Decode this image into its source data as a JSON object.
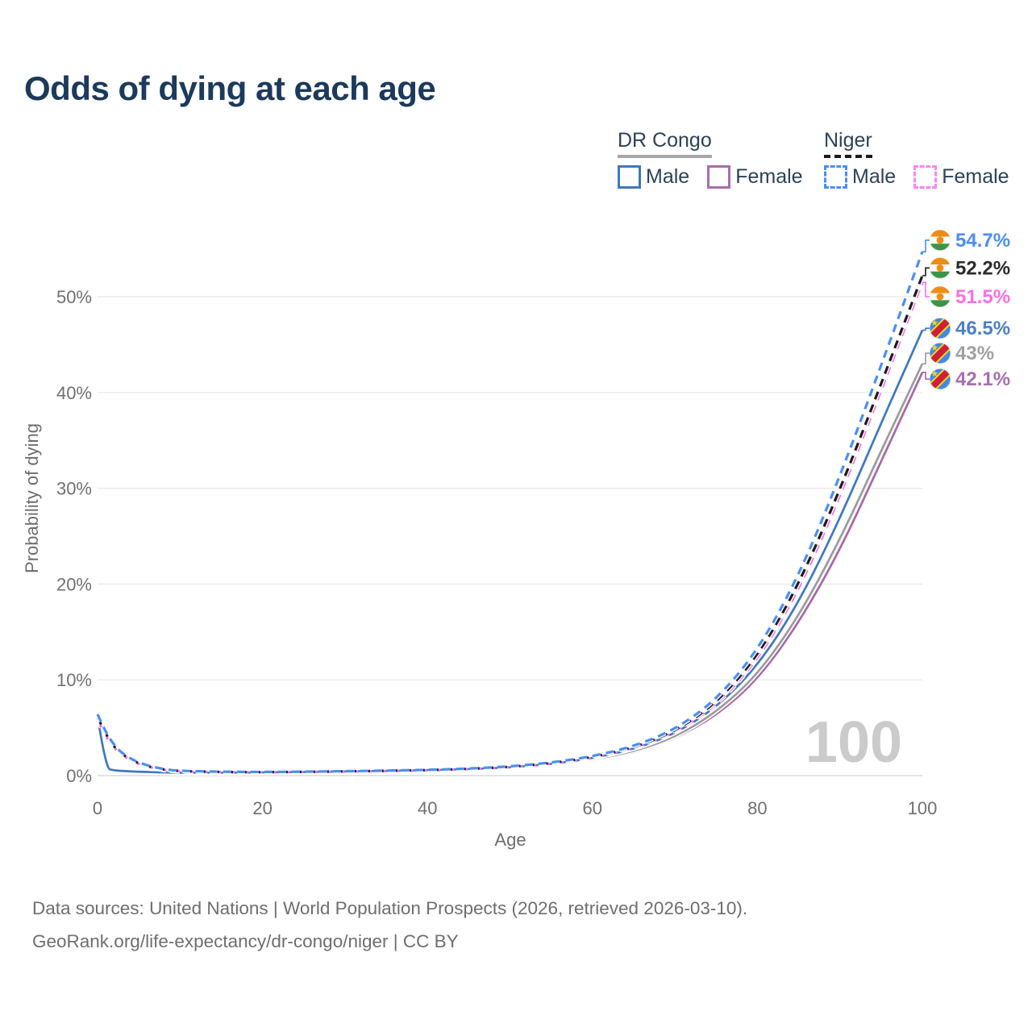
{
  "title": "Odds of dying at each age",
  "legend": {
    "groups": [
      {
        "name": "DR Congo",
        "underline_style": "solid",
        "underline_color": "#a6a6a6",
        "items": [
          {
            "label": "Male",
            "color": "#3E78C0",
            "dashed": false
          },
          {
            "label": "Female",
            "color": "#AC6BAE",
            "dashed": false
          }
        ]
      },
      {
        "name": "Niger",
        "underline_style": "dashed",
        "underline_color": "#1a1a1a",
        "items": [
          {
            "label": "Male",
            "color": "#4A8EF5",
            "dashed": true
          },
          {
            "label": "Female",
            "color": "#FC86EF",
            "dashed": true
          }
        ]
      }
    ]
  },
  "chart_data": {
    "type": "line",
    "title": "Odds of dying at each age",
    "xlabel": "Age",
    "ylabel": "Probability of dying",
    "x_ticks": [
      0,
      20,
      40,
      60,
      80,
      100
    ],
    "y_ticks": [
      0,
      10,
      20,
      30,
      40,
      50
    ],
    "y_tick_suffix": "%",
    "xlim": [
      0,
      100
    ],
    "ylim_pct": [
      0,
      56
    ],
    "grid": "horizontal",
    "watermark": "100",
    "watermark_color": "#CBCBCB",
    "series": [
      {
        "id": "drc-female",
        "name": "DR Congo Female",
        "country": "DR Congo",
        "sex": "Female",
        "color": "#A767AB",
        "label_color": "#A76FB0",
        "dashed": false,
        "flag": "drc",
        "end_label": "42.1%",
        "end_value_pct": 42.1,
        "label_row_pct": 41.4,
        "points": [
          [
            0,
            5.6
          ],
          [
            1,
            0.68
          ],
          [
            2,
            0.5
          ],
          [
            3,
            0.43
          ],
          [
            5,
            0.36
          ],
          [
            8,
            0.29
          ],
          [
            10,
            0.26
          ],
          [
            15,
            0.26
          ],
          [
            20,
            0.29
          ],
          [
            25,
            0.33
          ],
          [
            30,
            0.38
          ],
          [
            35,
            0.44
          ],
          [
            40,
            0.51
          ],
          [
            45,
            0.6
          ],
          [
            50,
            0.75
          ],
          [
            55,
            1.03
          ],
          [
            60,
            1.55
          ],
          [
            65,
            2.35
          ],
          [
            70,
            3.85
          ],
          [
            75,
            6.25
          ],
          [
            80,
            10.0
          ],
          [
            85,
            15.9
          ],
          [
            90,
            23.5
          ],
          [
            95,
            32.8
          ],
          [
            100,
            42.1
          ]
        ]
      },
      {
        "id": "drc-all",
        "name": "DR Congo",
        "country": "DR Congo",
        "sex": "Both",
        "color": "#9B9B9B",
        "label_color": "#A0A0A0",
        "dashed": false,
        "flag": "drc",
        "end_label": "43%",
        "end_value_pct": 43.0,
        "label_row_pct": 44.1,
        "points": [
          [
            0,
            5.9
          ],
          [
            1,
            0.72
          ],
          [
            2,
            0.52
          ],
          [
            3,
            0.45
          ],
          [
            5,
            0.38
          ],
          [
            8,
            0.31
          ],
          [
            10,
            0.28
          ],
          [
            15,
            0.28
          ],
          [
            20,
            0.31
          ],
          [
            25,
            0.36
          ],
          [
            30,
            0.41
          ],
          [
            35,
            0.47
          ],
          [
            40,
            0.54
          ],
          [
            45,
            0.64
          ],
          [
            50,
            0.8
          ],
          [
            55,
            1.1
          ],
          [
            60,
            1.65
          ],
          [
            65,
            2.5
          ],
          [
            70,
            4.0
          ],
          [
            75,
            6.6
          ],
          [
            80,
            10.5
          ],
          [
            85,
            16.6
          ],
          [
            90,
            24.6
          ],
          [
            95,
            33.9
          ],
          [
            100,
            43.0
          ]
        ]
      },
      {
        "id": "drc-male",
        "name": "DR Congo Male",
        "country": "DR Congo",
        "sex": "Male",
        "color": "#3E78C0",
        "label_color": "#4C80C4",
        "dashed": false,
        "flag": "drc",
        "end_label": "46.5%",
        "end_value_pct": 46.5,
        "label_row_pct": 46.7,
        "points": [
          [
            0,
            6.2
          ],
          [
            1,
            0.75
          ],
          [
            2,
            0.55
          ],
          [
            3,
            0.48
          ],
          [
            5,
            0.4
          ],
          [
            8,
            0.33
          ],
          [
            10,
            0.3
          ],
          [
            15,
            0.3
          ],
          [
            20,
            0.33
          ],
          [
            25,
            0.38
          ],
          [
            30,
            0.44
          ],
          [
            35,
            0.5
          ],
          [
            40,
            0.57
          ],
          [
            45,
            0.68
          ],
          [
            50,
            0.85
          ],
          [
            55,
            1.2
          ],
          [
            60,
            1.8
          ],
          [
            65,
            2.75
          ],
          [
            70,
            4.35
          ],
          [
            75,
            7.1
          ],
          [
            80,
            11.4
          ],
          [
            85,
            18.0
          ],
          [
            90,
            26.8
          ],
          [
            95,
            36.8
          ],
          [
            100,
            46.5
          ]
        ]
      },
      {
        "id": "niger-female",
        "name": "Niger Female",
        "country": "Niger",
        "sex": "Female",
        "color": "#FA6FE6",
        "label_color": "#FA6FE6",
        "dashed": true,
        "flag": "niger",
        "end_label": "51.5%",
        "end_value_pct": 51.5,
        "label_row_pct": 50.0,
        "points": [
          [
            0,
            5.8
          ],
          [
            1,
            4.1
          ],
          [
            2,
            2.9
          ],
          [
            3,
            2.1
          ],
          [
            5,
            1.15
          ],
          [
            8,
            0.57
          ],
          [
            10,
            0.44
          ],
          [
            15,
            0.35
          ],
          [
            20,
            0.34
          ],
          [
            25,
            0.37
          ],
          [
            30,
            0.42
          ],
          [
            35,
            0.47
          ],
          [
            40,
            0.54
          ],
          [
            45,
            0.66
          ],
          [
            50,
            0.86
          ],
          [
            55,
            1.22
          ],
          [
            60,
            1.8
          ],
          [
            65,
            2.8
          ],
          [
            70,
            4.45
          ],
          [
            75,
            7.3
          ],
          [
            80,
            12.0
          ],
          [
            85,
            19.3
          ],
          [
            90,
            29.1
          ],
          [
            95,
            40.2
          ],
          [
            100,
            51.5
          ]
        ]
      },
      {
        "id": "niger-all",
        "name": "Niger",
        "country": "Niger",
        "sex": "Both",
        "color": "#1C1C1C",
        "label_color": "#2B2B2B",
        "dashed": true,
        "flag": "niger",
        "end_label": "52.2%",
        "end_value_pct": 52.2,
        "label_row_pct": 53.0,
        "points": [
          [
            0,
            6.1
          ],
          [
            1,
            4.3
          ],
          [
            2,
            3.0
          ],
          [
            3,
            2.2
          ],
          [
            5,
            1.2
          ],
          [
            8,
            0.6
          ],
          [
            10,
            0.47
          ],
          [
            15,
            0.37
          ],
          [
            20,
            0.36
          ],
          [
            25,
            0.39
          ],
          [
            30,
            0.44
          ],
          [
            35,
            0.5
          ],
          [
            40,
            0.57
          ],
          [
            45,
            0.7
          ],
          [
            50,
            0.9
          ],
          [
            55,
            1.28
          ],
          [
            60,
            1.9
          ],
          [
            65,
            2.9
          ],
          [
            70,
            4.6
          ],
          [
            75,
            7.55
          ],
          [
            80,
            12.4
          ],
          [
            85,
            19.9
          ],
          [
            90,
            29.8
          ],
          [
            95,
            40.9
          ],
          [
            100,
            52.2
          ]
        ]
      },
      {
        "id": "niger-male",
        "name": "Niger Male",
        "country": "Niger",
        "sex": "Male",
        "color": "#4A8EF5",
        "label_color": "#4A8EF5",
        "dashed": true,
        "flag": "niger",
        "end_label": "54.7%",
        "end_value_pct": 54.7,
        "label_row_pct": 55.9,
        "points": [
          [
            0,
            6.4
          ],
          [
            1,
            4.5
          ],
          [
            2,
            3.2
          ],
          [
            3,
            2.3
          ],
          [
            5,
            1.3
          ],
          [
            8,
            0.65
          ],
          [
            10,
            0.5
          ],
          [
            15,
            0.4
          ],
          [
            20,
            0.38
          ],
          [
            25,
            0.41
          ],
          [
            30,
            0.46
          ],
          [
            35,
            0.52
          ],
          [
            40,
            0.6
          ],
          [
            45,
            0.73
          ],
          [
            50,
            0.95
          ],
          [
            55,
            1.35
          ],
          [
            60,
            2.0
          ],
          [
            65,
            3.05
          ],
          [
            70,
            4.8
          ],
          [
            75,
            7.9
          ],
          [
            80,
            13.0
          ],
          [
            85,
            20.8
          ],
          [
            90,
            31.2
          ],
          [
            95,
            42.8
          ],
          [
            100,
            54.7
          ]
        ]
      }
    ],
    "flag_colors": {
      "niger": {
        "orange": "#EF8D13",
        "white": "#FDFDFD",
        "green": "#3D9448"
      },
      "drc": {
        "blue": "#4189E4",
        "yellow": "#F7D518",
        "red": "#CE2038"
      }
    }
  },
  "footer": {
    "line1": "Data sources: United Nations | World Population Prospects (2026, retrieved 2026-03-10).",
    "line2": "GeoRank.org/life-expectancy/dr-congo/niger | CC BY"
  }
}
